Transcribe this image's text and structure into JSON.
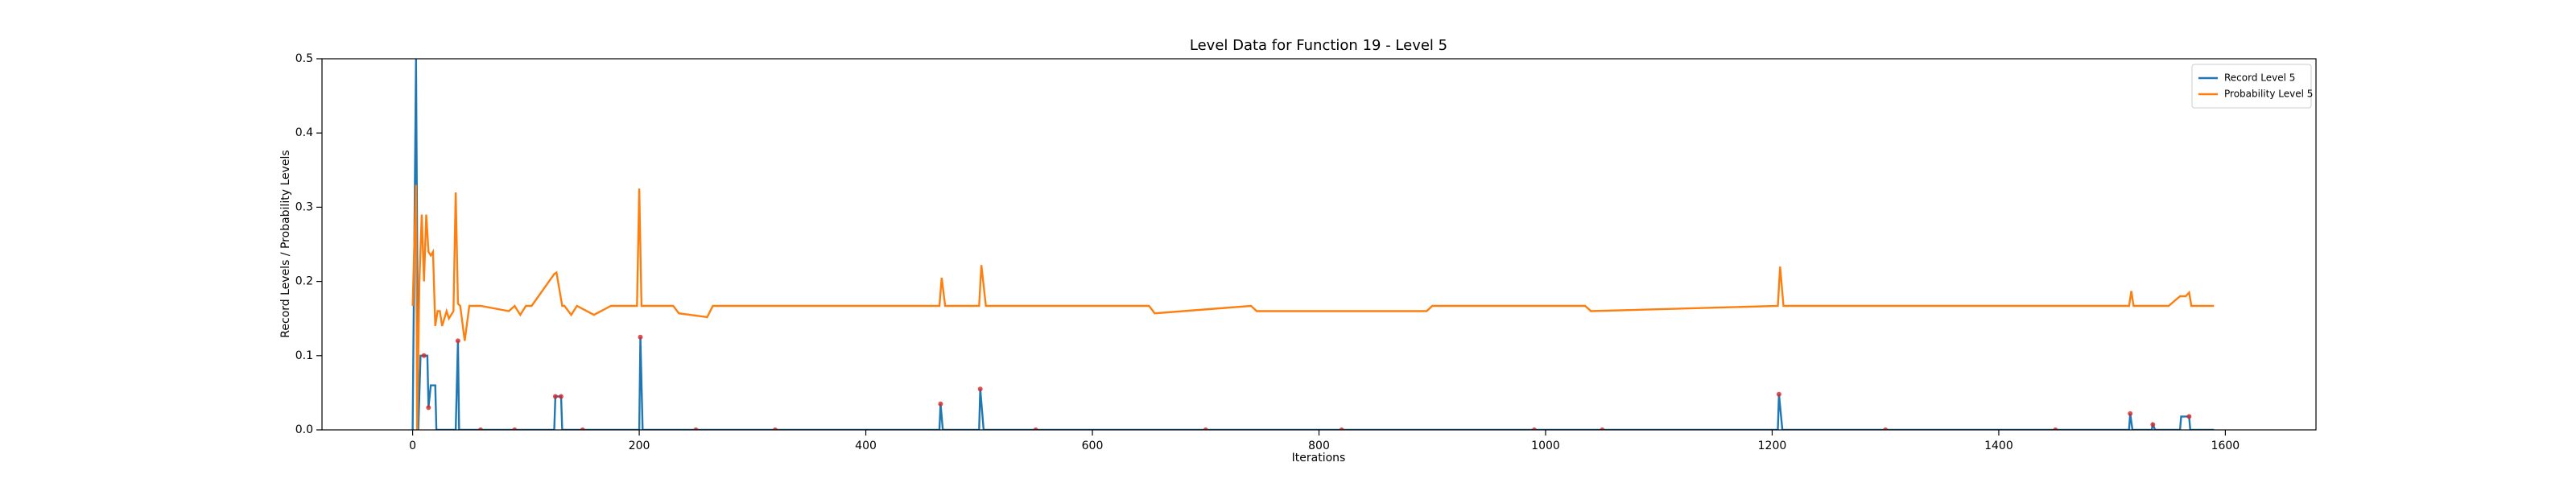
{
  "chart_data": {
    "type": "line",
    "title": "Level Data for Function 19 - Level 5",
    "x_label": "Iterations",
    "y_label": "Record Levels / Probability Levels",
    "xlim": [
      -80,
      1680
    ],
    "ylim": [
      0,
      0.5
    ],
    "xticks": [
      0,
      200,
      400,
      600,
      800,
      1000,
      1200,
      1400,
      1600
    ],
    "yticks": [
      {
        "value": 0,
        "label": "0.0"
      },
      0.1,
      0.2,
      0.3,
      0.4,
      0.5
    ],
    "legend": "upper right",
    "series": [
      {
        "name": "Record Level 5",
        "color": "#1f77b4",
        "x": [
          0,
          3,
          5,
          7,
          13,
          14,
          16,
          20,
          21,
          38,
          40,
          41,
          125,
          126,
          131,
          132,
          200,
          201,
          203,
          465,
          466,
          468,
          500,
          501,
          504,
          1205,
          1206,
          1209,
          1515,
          1516,
          1518,
          1535,
          1536,
          1538,
          1560,
          1561,
          1568,
          1569,
          1590
        ],
        "values": [
          0,
          0.5,
          0,
          0.1,
          0.1,
          0.03,
          0.06,
          0.06,
          0,
          0,
          0.12,
          0,
          0,
          0.045,
          0.045,
          0,
          0,
          0.125,
          0,
          0,
          0.035,
          0,
          0,
          0.055,
          0,
          0,
          0.048,
          0,
          0,
          0.022,
          0,
          0,
          0.007,
          0,
          0,
          0.018,
          0.018,
          0,
          0
        ]
      },
      {
        "name": "Probability Level 5",
        "color": "#ff7f0e",
        "x": [
          0,
          3,
          4,
          6,
          8,
          10,
          12,
          14,
          16,
          18,
          20,
          22,
          24,
          26,
          30,
          32,
          36,
          38,
          40,
          42,
          46,
          50,
          55,
          60,
          85,
          90,
          95,
          100,
          105,
          125,
          127,
          132,
          134,
          140,
          145,
          160,
          175,
          180,
          198,
          200,
          202,
          204,
          230,
          235,
          260,
          265,
          465,
          467,
          470,
          500,
          502,
          506,
          650,
          655,
          740,
          745,
          895,
          900,
          1035,
          1040,
          1205,
          1207,
          1210,
          1215,
          1515,
          1517,
          1519,
          1550,
          1560,
          1565,
          1568,
          1570,
          1590
        ],
        "values": [
          0.167,
          0.33,
          0,
          0.2,
          0.29,
          0.2,
          0.29,
          0.24,
          0.235,
          0.24,
          0.14,
          0.16,
          0.16,
          0.14,
          0.16,
          0.15,
          0.16,
          0.32,
          0.17,
          0.167,
          0.12,
          0.167,
          0.167,
          0.167,
          0.16,
          0.167,
          0.155,
          0.167,
          0.167,
          0.21,
          0.212,
          0.167,
          0.167,
          0.155,
          0.167,
          0.155,
          0.167,
          0.167,
          0.167,
          0.325,
          0.167,
          0.167,
          0.167,
          0.157,
          0.152,
          0.167,
          0.167,
          0.205,
          0.167,
          0.167,
          0.222,
          0.167,
          0.167,
          0.157,
          0.167,
          0.16,
          0.16,
          0.167,
          0.167,
          0.16,
          0.167,
          0.22,
          0.167,
          0.167,
          0.167,
          0.187,
          0.167,
          0.167,
          0.18,
          0.18,
          0.185,
          0.167,
          0.167
        ]
      }
    ],
    "points": {
      "color": "#d62728",
      "x": [
        10,
        14,
        40,
        126,
        131,
        201,
        466,
        501,
        1206,
        1516,
        1536,
        1568,
        60,
        90,
        150,
        250,
        320,
        550,
        700,
        820,
        990,
        1050,
        1300,
        1450
      ],
      "values": [
        0.1,
        0.03,
        0.12,
        0.045,
        0.045,
        0.125,
        0.035,
        0.055,
        0.048,
        0.022,
        0.007,
        0.018,
        0,
        0,
        0,
        0,
        0,
        0,
        0,
        0,
        0,
        0,
        0,
        0
      ]
    }
  }
}
